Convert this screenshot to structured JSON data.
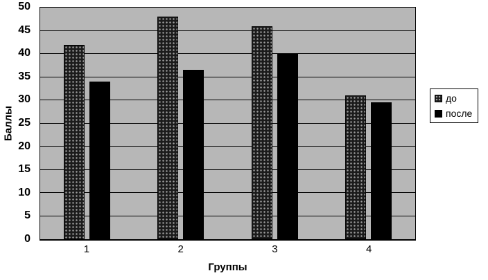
{
  "chart_data": {
    "type": "bar",
    "title": "",
    "categories": [
      "1",
      "2",
      "3",
      "4"
    ],
    "series": [
      {
        "name": "до",
        "values": [
          42,
          48,
          46,
          31
        ]
      },
      {
        "name": "после",
        "values": [
          34,
          36.5,
          40,
          29.5
        ]
      }
    ],
    "xlabel": "Группы",
    "ylabel": "Баллы",
    "ylim": [
      0,
      50
    ],
    "ytick_step": 5,
    "yticks": [
      0,
      5,
      10,
      15,
      20,
      25,
      30,
      35,
      40,
      45,
      50
    ],
    "grid": "horizontal",
    "legend_position": "right",
    "colors": {
      "plot_background": "#b7b7b7",
      "gridline": "#000000",
      "series_do": "#1b1b1b",
      "series_posle": "#000000",
      "page_background": "#ffffff"
    }
  }
}
